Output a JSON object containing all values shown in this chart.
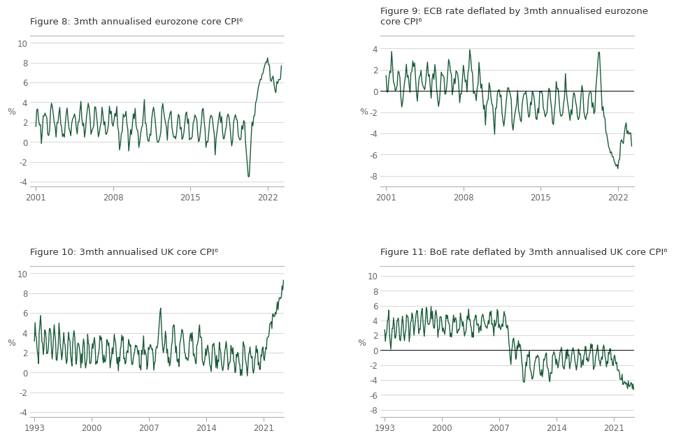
{
  "fig8_title": "Figure 8: 3mth annualised eurozone core CPI⁶",
  "fig9_title": "Figure 9: ECB rate deflated by 3mth annualised eurozone\ncore CPI⁶",
  "fig10_title": "Figure 10: 3mth annualised UK core CPI⁶",
  "fig11_title": "Figure 11: BoE rate deflated by 3mth annualised UK core CPI⁶",
  "line_color": "#1a5c38",
  "line_width": 1.0,
  "bg_color": "#ffffff",
  "title_color": "#333333",
  "grid_color": "#d0d0d0",
  "tick_color": "#666666",
  "fig8_ylim": [
    -4.5,
    10.5
  ],
  "fig8_yticks": [
    -4,
    -2,
    0,
    2,
    4,
    6,
    8,
    10
  ],
  "fig8_xticks": [
    2001,
    2008,
    2015,
    2022
  ],
  "fig8_xlim": [
    2000.5,
    2023.5
  ],
  "fig9_ylim": [
    -9.0,
    5.0
  ],
  "fig9_yticks": [
    -8,
    -6,
    -4,
    -2,
    0,
    2,
    4
  ],
  "fig9_xticks": [
    2001,
    2008,
    2015,
    2022
  ],
  "fig9_xlim": [
    2000.5,
    2023.5
  ],
  "fig10_ylim": [
    -4.5,
    10.5
  ],
  "fig10_yticks": [
    -4,
    -2,
    0,
    2,
    4,
    6,
    8,
    10
  ],
  "fig10_xticks": [
    1993,
    2000,
    2007,
    2014,
    2021
  ],
  "fig10_xlim": [
    1992.5,
    2023.5
  ],
  "fig11_ylim": [
    -9.0,
    11.0
  ],
  "fig11_yticks": [
    -8,
    -6,
    -4,
    -2,
    0,
    2,
    4,
    6,
    8,
    10
  ],
  "fig11_xticks": [
    1993,
    2000,
    2007,
    2014,
    2021
  ],
  "fig11_xlim": [
    1992.5,
    2023.5
  ],
  "ylabel": "%",
  "title_fontsize": 9.5,
  "tick_fontsize": 8.5,
  "ylabel_fontsize": 9
}
